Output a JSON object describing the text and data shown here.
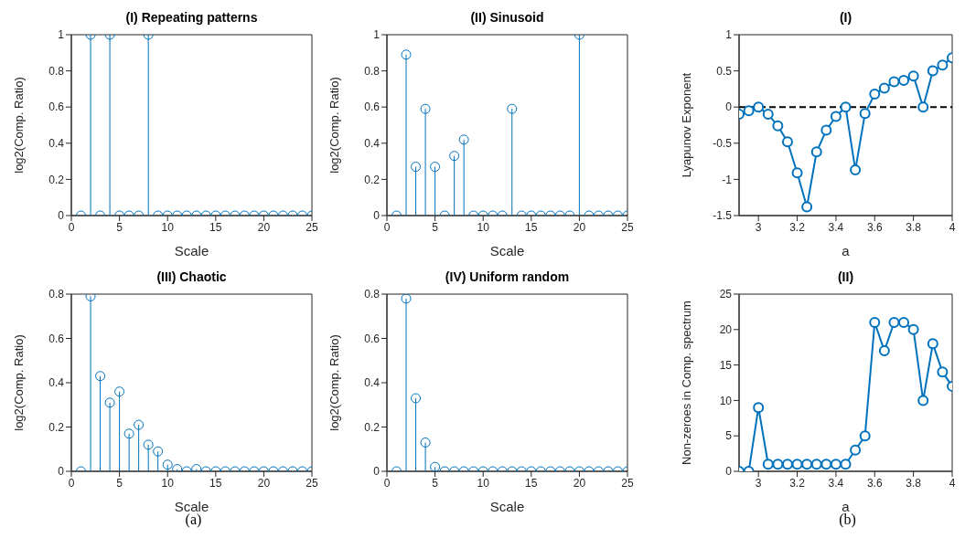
{
  "chart_data": [
    {
      "type": "lollipop",
      "title": "(I) Repeating patterns",
      "xlabel": "Scale",
      "ylabel": "log2(Comp. Ratio)",
      "x": [
        1,
        2,
        3,
        4,
        5,
        6,
        7,
        8,
        9,
        10,
        11,
        12,
        13,
        14,
        15,
        16,
        17,
        18,
        19,
        20,
        21,
        22,
        23,
        24,
        25
      ],
      "series": [
        {
          "color": "#0072bd",
          "values": [
            0,
            1,
            0,
            1,
            0,
            0,
            0,
            1,
            0,
            0,
            0,
            0,
            0,
            0,
            0,
            0,
            0,
            0,
            0,
            0,
            0,
            0,
            0,
            0,
            0
          ]
        }
      ],
      "xlim": [
        0,
        25
      ],
      "xticks": [
        0,
        5,
        10,
        15,
        20,
        25
      ],
      "ylim": [
        0,
        1
      ],
      "yticks": [
        0,
        0.2,
        0.4,
        0.6,
        0.8,
        1
      ],
      "grid": false,
      "legend": false,
      "marker": "circle"
    },
    {
      "type": "lollipop",
      "title": "(II) Sinusoid",
      "xlabel": "Scale",
      "ylabel": "log2(Comp. Ratio)",
      "x": [
        1,
        2,
        3,
        4,
        5,
        6,
        7,
        8,
        9,
        10,
        11,
        12,
        13,
        14,
        15,
        16,
        17,
        18,
        19,
        20,
        21,
        22,
        23,
        24,
        25
      ],
      "series": [
        {
          "color": "#0072bd",
          "values": [
            0,
            0.89,
            0.27,
            0.59,
            0.27,
            0,
            0.33,
            0.42,
            0,
            0,
            0,
            0,
            0.59,
            0,
            0,
            0,
            0,
            0,
            0,
            1,
            0,
            0,
            0,
            0,
            0
          ]
        }
      ],
      "xlim": [
        0,
        25
      ],
      "xticks": [
        0,
        5,
        10,
        15,
        20,
        25
      ],
      "ylim": [
        0,
        1
      ],
      "yticks": [
        0,
        0.2,
        0.4,
        0.6,
        0.8,
        1
      ],
      "grid": false,
      "legend": false,
      "marker": "circle"
    },
    {
      "type": "lollipop",
      "title": "(III) Chaotic",
      "xlabel": "Scale",
      "ylabel": "log2(Comp. Ratio)",
      "annotations": [
        "(a)"
      ],
      "x": [
        1,
        2,
        3,
        4,
        5,
        6,
        7,
        8,
        9,
        10,
        11,
        12,
        13,
        14,
        15,
        16,
        17,
        18,
        19,
        20,
        21,
        22,
        23,
        24,
        25
      ],
      "series": [
        {
          "color": "#0072bd",
          "values": [
            0,
            0.79,
            0.43,
            0.31,
            0.36,
            0.17,
            0.21,
            0.12,
            0.09,
            0.03,
            0.01,
            0,
            0.01,
            0,
            0,
            0,
            0,
            0,
            0,
            0,
            0,
            0,
            0,
            0,
            0
          ]
        }
      ],
      "xlim": [
        0,
        25
      ],
      "xticks": [
        0,
        5,
        10,
        15,
        20,
        25
      ],
      "ylim": [
        0,
        0.8
      ],
      "yticks": [
        0,
        0.2,
        0.4,
        0.6,
        0.8
      ],
      "grid": false,
      "legend": false,
      "marker": "circle"
    },
    {
      "type": "lollipop",
      "title": "(IV) Uniform random",
      "xlabel": "Scale",
      "ylabel": "log2(Comp. Ratio)",
      "x": [
        1,
        2,
        3,
        4,
        5,
        6,
        7,
        8,
        9,
        10,
        11,
        12,
        13,
        14,
        15,
        16,
        17,
        18,
        19,
        20,
        21,
        22,
        23,
        24,
        25
      ],
      "series": [
        {
          "color": "#0072bd",
          "values": [
            0,
            0.78,
            0.33,
            0.13,
            0.02,
            0,
            0,
            0,
            0,
            0,
            0,
            0,
            0,
            0,
            0,
            0,
            0,
            0,
            0,
            0,
            0,
            0,
            0,
            0,
            0
          ]
        }
      ],
      "xlim": [
        0,
        25
      ],
      "xticks": [
        0,
        5,
        10,
        15,
        20,
        25
      ],
      "ylim": [
        0,
        0.8
      ],
      "yticks": [
        0,
        0.2,
        0.4,
        0.6,
        0.8
      ],
      "grid": false,
      "legend": false,
      "marker": "circle"
    },
    {
      "type": "line",
      "title": "(I)",
      "xlabel": "a",
      "ylabel": "Lyapunov Exponent",
      "x": [
        2.9,
        2.95,
        3,
        3.05,
        3.1,
        3.15,
        3.2,
        3.25,
        3.3,
        3.35,
        3.4,
        3.45,
        3.5,
        3.55,
        3.6,
        3.65,
        3.7,
        3.75,
        3.8,
        3.85,
        3.9,
        3.95,
        4
      ],
      "series": [
        {
          "color": "#0072bd",
          "values": [
            -0.1,
            -0.05,
            0,
            -0.1,
            -0.26,
            -0.48,
            -0.91,
            -1.38,
            -0.62,
            -0.32,
            -0.13,
            0,
            -0.87,
            -0.09,
            0.18,
            0.26,
            0.35,
            0.37,
            0.43,
            0,
            0.5,
            0.58,
            0.68
          ]
        }
      ],
      "xlim": [
        2.9,
        4
      ],
      "xticks": [
        3,
        3.2,
        3.4,
        3.6,
        3.8,
        4
      ],
      "ylim": [
        -1.5,
        1
      ],
      "yticks": [
        -1.5,
        -1,
        -0.5,
        0,
        0.5,
        1
      ],
      "grid": false,
      "legend": false,
      "marker": "circle",
      "line_style": "solid",
      "ref_lines": [
        {
          "axis": "y",
          "value": 0,
          "color": "#000000",
          "line_style": "dashed"
        }
      ]
    },
    {
      "type": "line",
      "title": "(II)",
      "xlabel": "a",
      "ylabel": "Non-zeroes in Comp. spectrum",
      "annotations": [
        "(b)"
      ],
      "x": [
        2.9,
        2.95,
        3,
        3.05,
        3.1,
        3.15,
        3.2,
        3.25,
        3.3,
        3.35,
        3.4,
        3.45,
        3.5,
        3.55,
        3.6,
        3.65,
        3.7,
        3.75,
        3.8,
        3.85,
        3.9,
        3.95,
        4
      ],
      "series": [
        {
          "color": "#0072bd",
          "values": [
            0,
            0,
            9,
            1,
            1,
            1,
            1,
            1,
            1,
            1,
            1,
            1,
            3,
            5,
            21,
            17,
            21,
            21,
            20,
            10,
            18,
            14,
            12
          ]
        }
      ],
      "xlim": [
        2.9,
        4
      ],
      "xticks": [
        3,
        3.2,
        3.4,
        3.6,
        3.8,
        4
      ],
      "ylim": [
        0,
        25
      ],
      "yticks": [
        0,
        5,
        10,
        15,
        20,
        25
      ],
      "grid": false,
      "legend": false,
      "marker": "circle",
      "line_style": "solid"
    }
  ]
}
